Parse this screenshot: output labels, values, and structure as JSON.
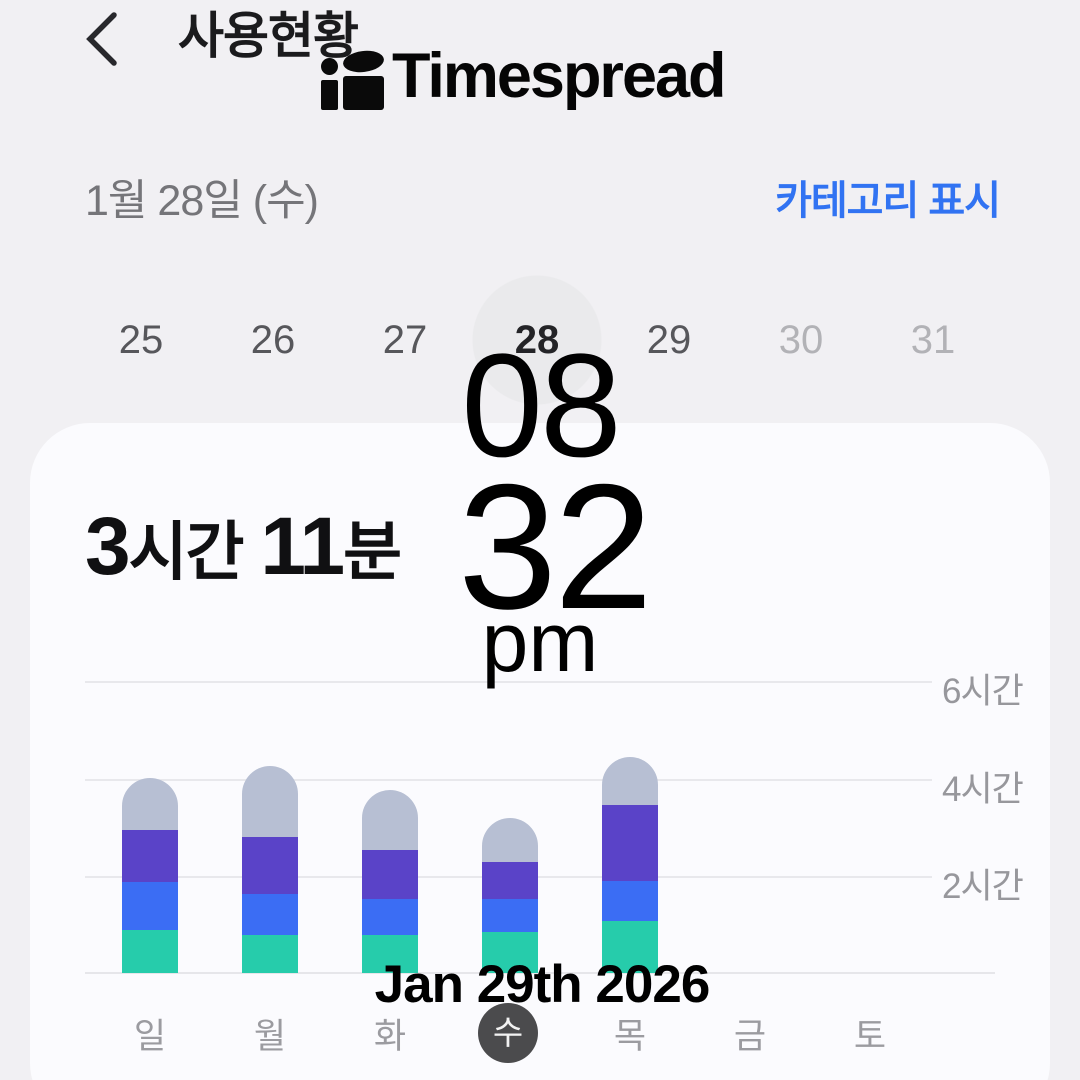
{
  "header": {
    "title": "사용현황"
  },
  "date_bar": {
    "current_date": "1월 28일 (수)",
    "category_toggle": "카테고리 표시"
  },
  "day_picker": {
    "days": [
      {
        "label": "25",
        "state": "normal"
      },
      {
        "label": "26",
        "state": "normal"
      },
      {
        "label": "27",
        "state": "normal"
      },
      {
        "label": "28",
        "state": "selected"
      },
      {
        "label": "29",
        "state": "normal"
      },
      {
        "label": "30",
        "state": "dimmed"
      },
      {
        "label": "31",
        "state": "dimmed"
      }
    ]
  },
  "usage": {
    "hours": "3",
    "hours_unit": "시간",
    "minutes": "11",
    "minutes_unit": "분"
  },
  "watermark": {
    "brand": "Timespread",
    "clock_hour": "08",
    "clock_minute": "32",
    "clock_meridiem": "pm",
    "date": "Jan 29th 2026"
  },
  "chart_data": {
    "type": "bar",
    "stacked": true,
    "title": "",
    "categories": [
      "일",
      "월",
      "화",
      "수",
      "목",
      "금",
      "토"
    ],
    "selected_category": "수",
    "series": [
      {
        "name": "segment-teal",
        "color": "#26ccab",
        "values": [
          0.88,
          0.78,
          0.78,
          0.84,
          1.07,
          0,
          0
        ]
      },
      {
        "name": "segment-blue",
        "color": "#3b6df4",
        "values": [
          0.98,
          0.84,
          0.74,
          0.68,
          0.82,
          0,
          0
        ]
      },
      {
        "name": "segment-purple",
        "color": "#5a43c8",
        "values": [
          1.07,
          1.17,
          1.01,
          0.76,
          1.56,
          0,
          0
        ]
      },
      {
        "name": "segment-gray",
        "color": "#b7bfd3",
        "values": [
          1.07,
          1.46,
          1.21,
          0.9,
          0.98,
          0,
          0
        ]
      }
    ],
    "totals_hours": [
      4.0,
      4.25,
      3.73,
      3.18,
      4.43,
      0,
      0
    ],
    "y_ticks": [
      "2시간",
      "4시간",
      "6시간"
    ],
    "ylim": [
      0,
      6.5
    ],
    "grid": true,
    "legend": false
  },
  "colors": {
    "background": "#f1f0f3",
    "card": "#fbfbfe",
    "accent_blue": "#3173f2",
    "selected_day_circle": "#4b4b4d",
    "picker_selected_bg": "#eaeaec"
  }
}
